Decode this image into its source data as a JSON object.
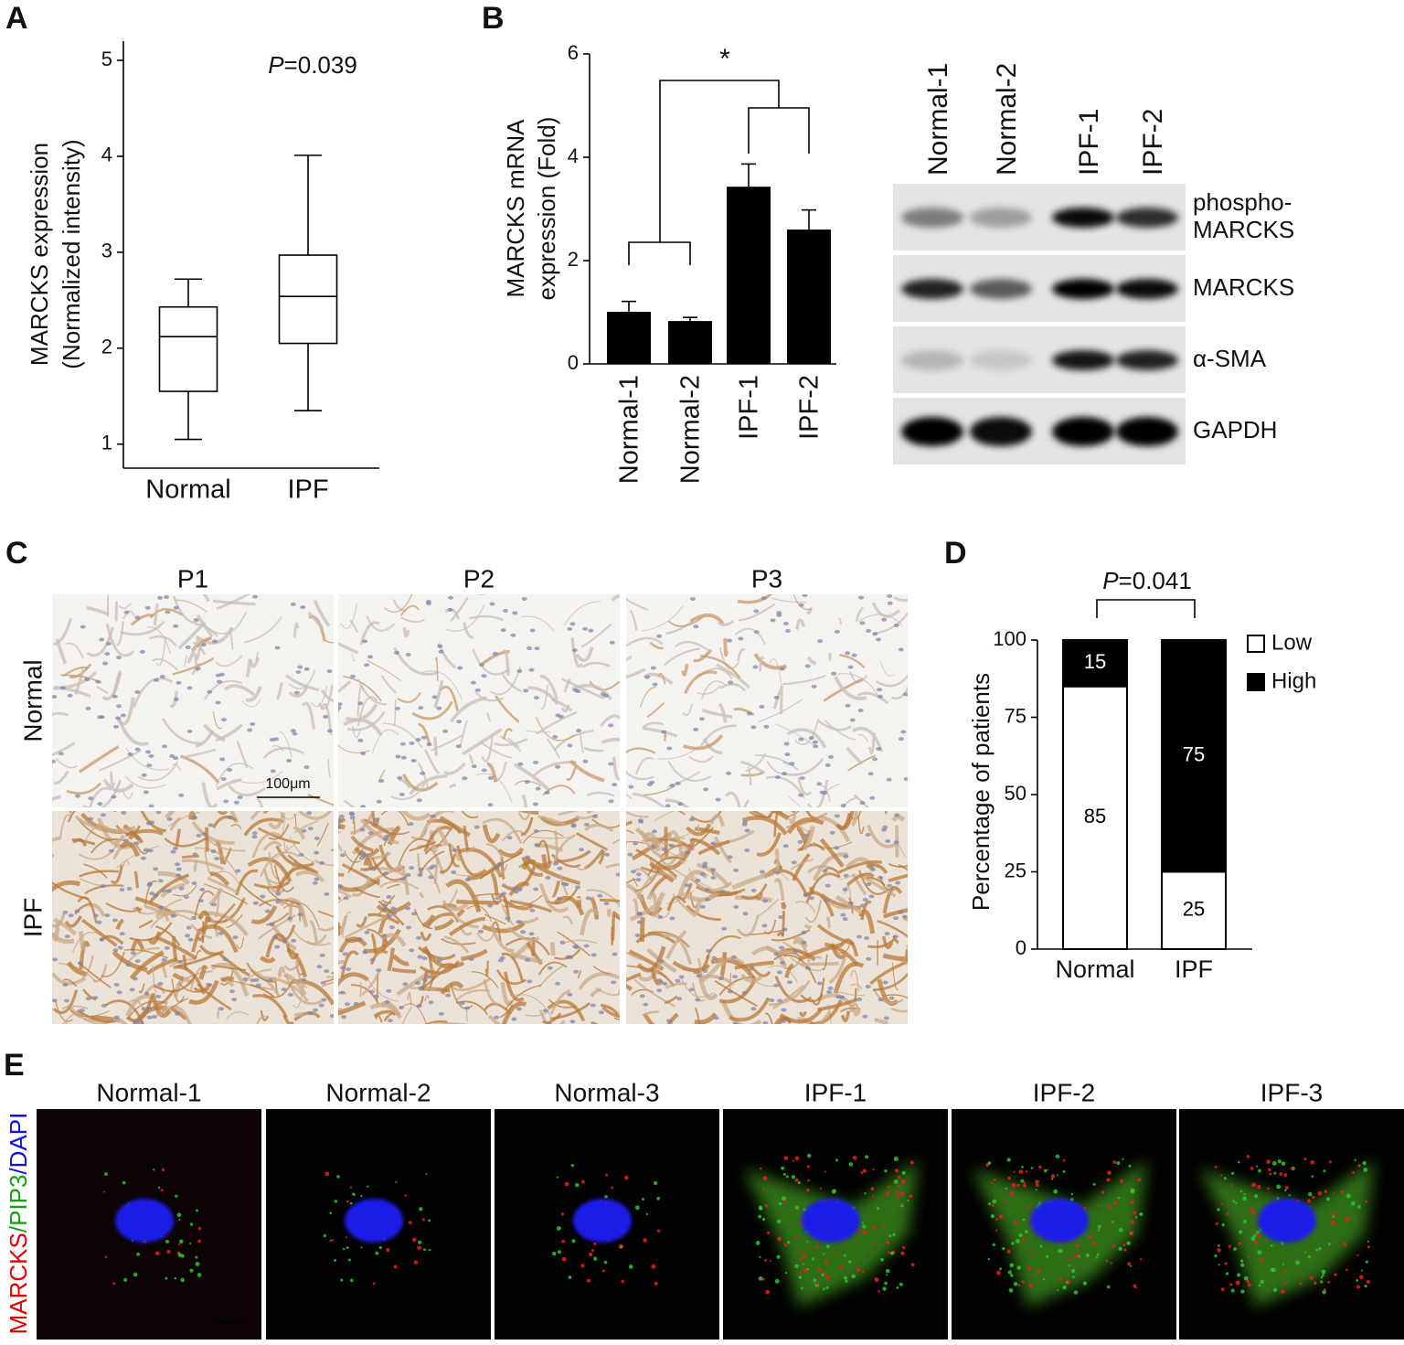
{
  "chart_data": [
    {
      "type": "box",
      "panel": "A",
      "ylabel": [
        "MARCKS expression",
        "(Normalized intensity)"
      ],
      "annotation": [
        "P",
        "=0.039"
      ],
      "categories": [
        "Normal",
        "IPF"
      ],
      "boxes": [
        {
          "low": 1.05,
          "q1": 1.55,
          "median": 2.12,
          "q3": 2.43,
          "high": 2.72
        },
        {
          "low": 1.35,
          "q1": 2.05,
          "median": 2.54,
          "q3": 2.97,
          "high": 4.01
        }
      ],
      "ylim": [
        0.75,
        5.2
      ],
      "yticks": [
        1,
        2,
        3,
        4,
        5
      ]
    },
    {
      "type": "bar",
      "panel": "B",
      "ylabel": [
        "MARCKS mRNA",
        "expression (Fold)"
      ],
      "annotation": "*",
      "categories": [
        "Normal-1",
        "Normal-2",
        "IPF-1",
        "IPF-2"
      ],
      "values": [
        1.01,
        0.83,
        3.43,
        2.6
      ],
      "errors": [
        0.2,
        0.07,
        0.44,
        0.38
      ],
      "color": "#000000",
      "ylim": [
        0,
        6
      ],
      "yticks": [
        0,
        2,
        4,
        6
      ]
    },
    {
      "type": "stacked_bar",
      "panel": "D",
      "ylabel": "Percentage of patients",
      "annotation": [
        "P",
        "=0.041"
      ],
      "categories": [
        "Normal",
        "IPF"
      ],
      "series": [
        {
          "name": "Low",
          "color": "#ffffff",
          "values": [
            85,
            25
          ]
        },
        {
          "name": "High",
          "color": "#000000",
          "values": [
            15,
            75
          ]
        }
      ],
      "ylim": [
        0,
        100
      ],
      "yticks": [
        0,
        25,
        50,
        75,
        100
      ],
      "legend": "upper right"
    }
  ],
  "blot": {
    "lanes": [
      "Normal-1",
      "Normal-2",
      "IPF-1",
      "IPF-2"
    ],
    "rows": [
      [
        "phospho-",
        "MARCKS"
      ],
      [
        "MARCKS"
      ],
      [
        "α-SMA"
      ],
      [
        "GAPDH"
      ]
    ]
  },
  "ihc": {
    "panel": "C",
    "columns": [
      "P1",
      "P2",
      "P3"
    ],
    "rows": [
      "Normal",
      "IPF"
    ],
    "scale_bar": "100μm"
  },
  "if": {
    "panel": "E",
    "columns": [
      "Normal-1",
      "Normal-2",
      "Normal-3",
      "IPF-1",
      "IPF-2",
      "IPF-3"
    ],
    "stain": [
      "MARCKS",
      "/PIP3",
      "/DAPI"
    ],
    "stain_colors": [
      "#e00000",
      "#16a016",
      "#1010e0"
    ]
  }
}
